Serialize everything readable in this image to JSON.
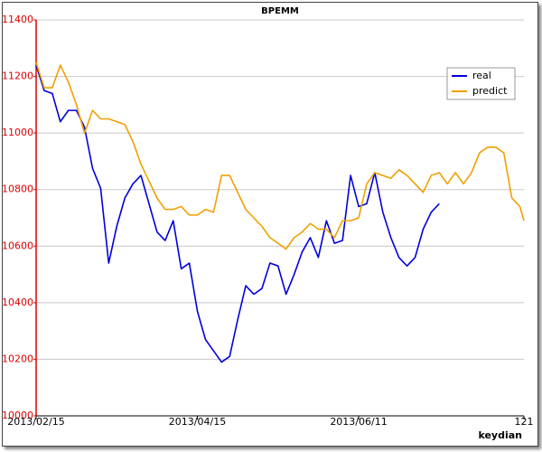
{
  "chart_data": {
    "type": "line",
    "title": "BPEMM",
    "x_label": "keydian",
    "x": [
      0,
      2,
      4,
      6,
      8,
      10,
      12,
      14,
      16,
      18,
      20,
      22,
      24,
      26,
      28,
      30,
      32,
      34,
      36,
      38,
      40,
      42,
      44,
      46,
      48,
      50,
      52,
      54,
      56,
      58,
      60,
      62,
      64,
      66,
      68,
      70,
      72,
      74,
      76,
      78,
      80,
      82,
      84,
      86,
      88,
      90,
      92,
      94,
      96,
      98,
      100,
      102,
      104,
      106,
      108,
      110,
      112,
      114,
      116,
      118,
      120,
      121
    ],
    "xlim": [
      0,
      121
    ],
    "xticks": [
      {
        "value": 0,
        "label": "2013/02/15"
      },
      {
        "value": 40,
        "label": "2013/04/15"
      },
      {
        "value": 80,
        "label": "2013/06/11"
      },
      121
    ],
    "ylim": [
      10000,
      11400
    ],
    "yticks": [
      10000,
      10200,
      10400,
      10600,
      10800,
      11000,
      11200,
      11400
    ],
    "grid": true,
    "legend": "upper right",
    "axis_color": "#dd0000",
    "series": [
      {
        "name": "real",
        "color": "#0000dd",
        "values": [
          11240,
          11150,
          11140,
          11040,
          11080,
          11080,
          11020,
          10875,
          10805,
          10540,
          10670,
          10770,
          10820,
          10850,
          10750,
          10650,
          10620,
          10690,
          10520,
          10540,
          10370,
          10270,
          10230,
          10190,
          10210,
          10340,
          10460,
          10430,
          10450,
          10540,
          10530,
          10430,
          10500,
          10580,
          10630,
          10560,
          10690,
          10610,
          10620,
          10850,
          10740,
          10750,
          10860,
          10720,
          10630,
          10560,
          10530,
          10560,
          10660,
          10720,
          10750,
          null,
          null,
          null,
          null,
          null,
          null,
          null,
          null,
          null,
          null,
          null
        ]
      },
      {
        "name": "predict",
        "color": "#f0a000",
        "values": [
          11250,
          11160,
          11160,
          11240,
          11180,
          11100,
          11000,
          11080,
          11050,
          11050,
          11040,
          11030,
          10970,
          10890,
          10830,
          10770,
          10730,
          10730,
          10740,
          10710,
          10710,
          10730,
          10720,
          10850,
          10850,
          10790,
          10730,
          10700,
          10670,
          10630,
          10610,
          10590,
          10630,
          10650,
          10680,
          10660,
          10660,
          10630,
          10690,
          10690,
          10700,
          10820,
          10860,
          10850,
          10840,
          10870,
          10850,
          10820,
          10790,
          10850,
          10860,
          10820,
          10860,
          10820,
          10860,
          10930,
          10950,
          10950,
          10930,
          10770,
          10740,
          10690
        ]
      }
    ]
  }
}
